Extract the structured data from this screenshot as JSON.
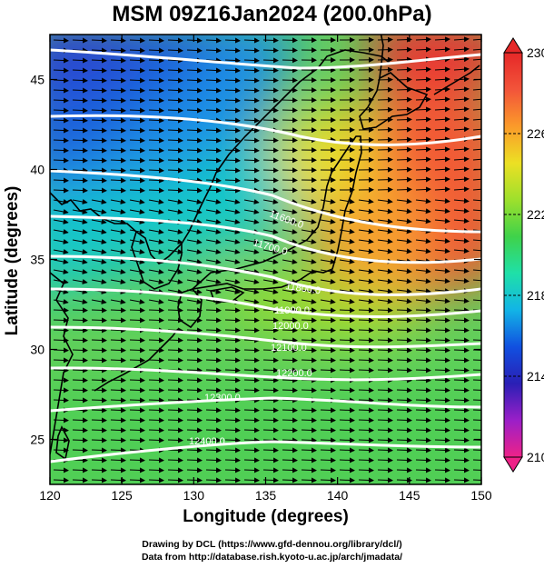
{
  "title": "MSM 09Z16Jan2024 (200.0hPa)",
  "xlabel": "Longitude (degrees)",
  "ylabel": "Latitude  (degrees)",
  "credits": [
    "Drawing by DCL (https://www.gfd-dennou.org/library/dcl/)",
    "Data from http://database.rish.kyoto-u.ac.jp/arch/jmadata/"
  ],
  "map": {
    "lon_range": [
      120,
      150
    ],
    "lat_range": [
      22.5,
      47.5
    ],
    "lon_ticks": [
      "120",
      "125",
      "130",
      "135",
      "140",
      "145",
      "150"
    ],
    "lat_ticks": [
      "25",
      "30",
      "35",
      "40",
      "45"
    ],
    "field": "temperature",
    "vectors": "wind",
    "contour_color": "#ffffff",
    "coastline_color": "#000000"
  },
  "colorbar": {
    "ticks": [
      "230",
      "226",
      "222",
      "218",
      "214",
      "210"
    ],
    "range": [
      210,
      230
    ],
    "colors": [
      "#ee2288",
      "#9b1fc8",
      "#2a1fb5",
      "#1150e0",
      "#12b4e6",
      "#1fe0a8",
      "#3fd24a",
      "#9ee02c",
      "#ece024",
      "#fb9a2a",
      "#f2543a",
      "#e62828"
    ]
  },
  "contours": [
    {
      "label": "11600.0"
    },
    {
      "label": "11700.0"
    },
    {
      "label": "11800.0"
    },
    {
      "label": "11900.0"
    },
    {
      "label": "12000.0"
    },
    {
      "label": "12100.0"
    },
    {
      "label": "12200.0"
    },
    {
      "label": "12300.0"
    },
    {
      "label": "12400.0"
    }
  ]
}
